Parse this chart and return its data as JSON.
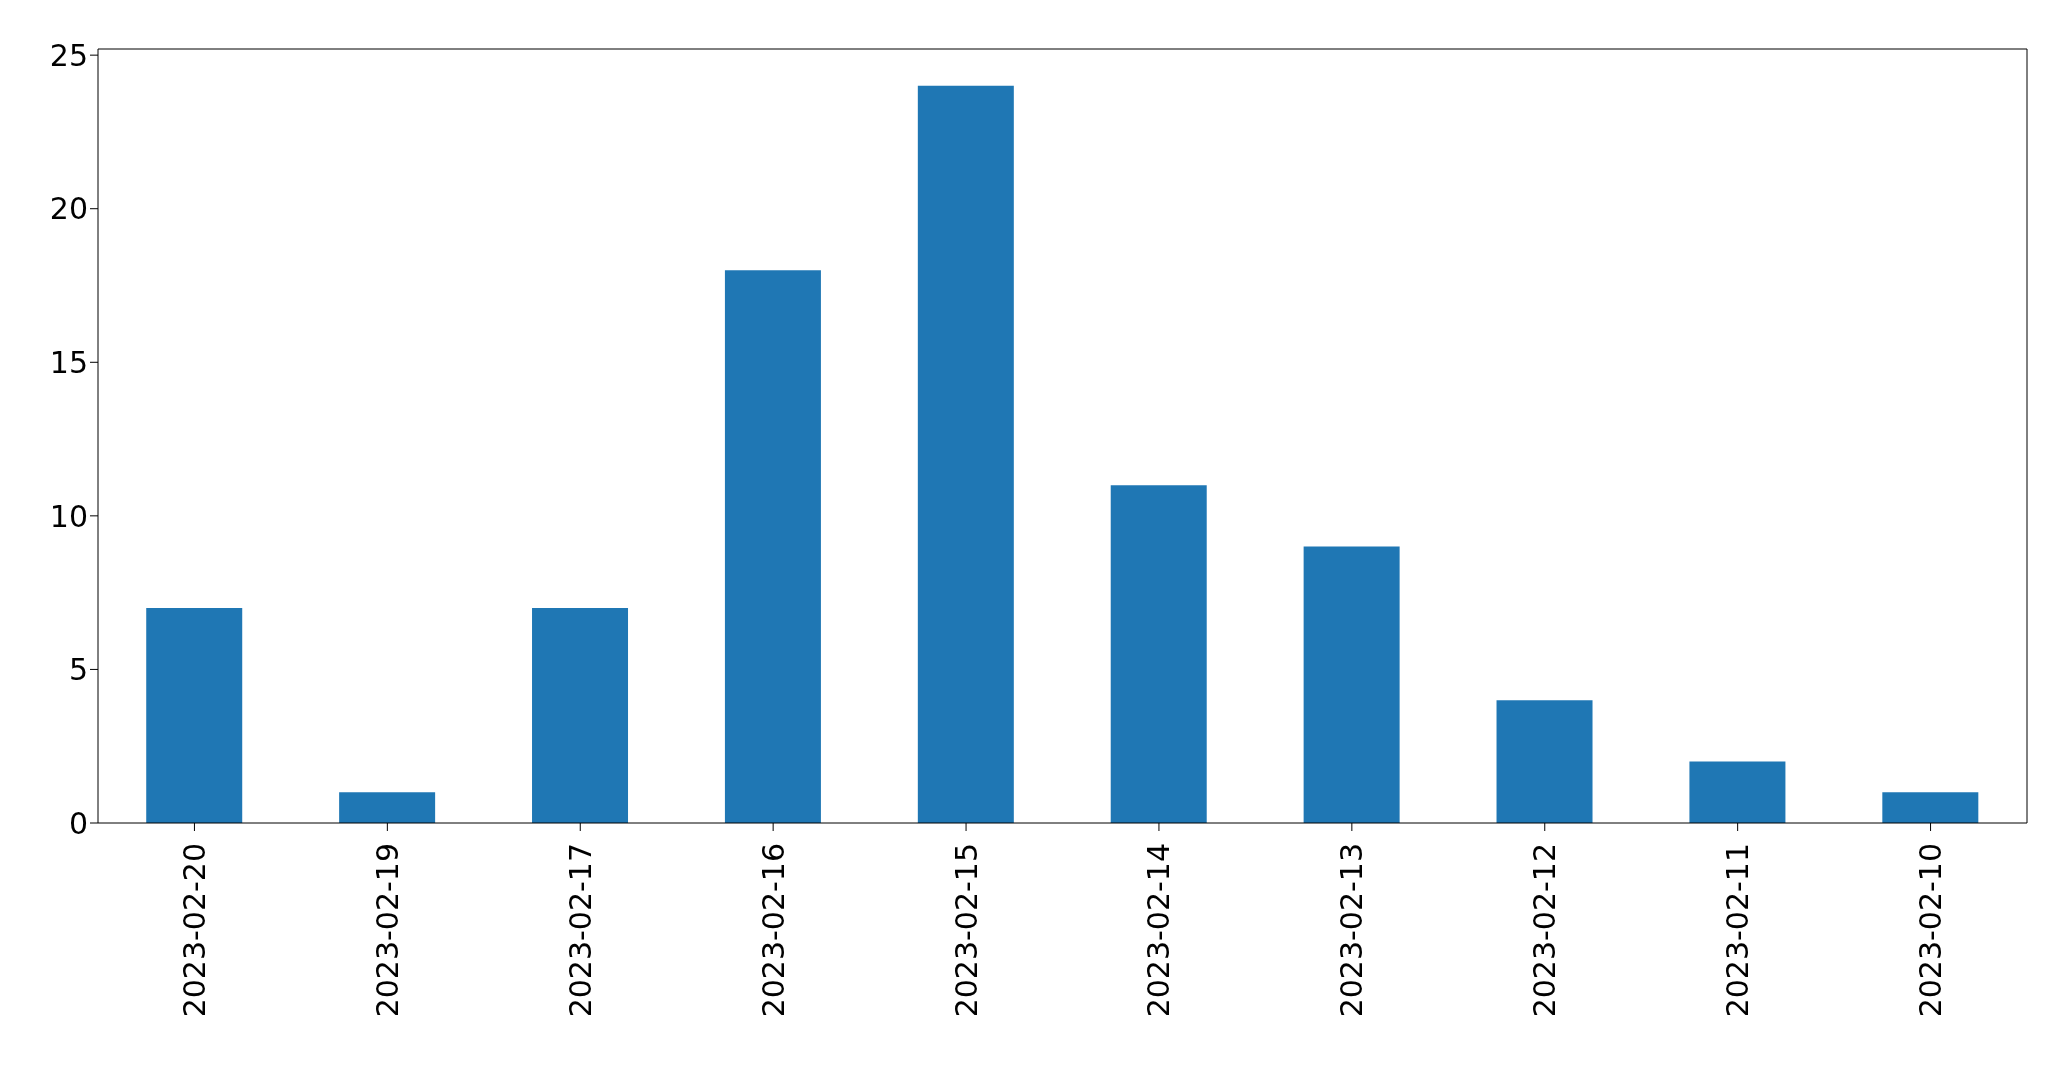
{
  "chart_data": {
    "type": "bar",
    "categories": [
      "2023-02-20",
      "2023-02-19",
      "2023-02-17",
      "2023-02-16",
      "2023-02-15",
      "2023-02-14",
      "2023-02-13",
      "2023-02-12",
      "2023-02-11",
      "2023-02-10"
    ],
    "values": [
      7,
      1,
      7,
      18,
      24,
      11,
      9,
      4,
      2,
      1
    ],
    "color": "#1f77b4",
    "ylim": [
      0,
      25.2
    ],
    "yticks": [
      0,
      5,
      10,
      15,
      20,
      25
    ],
    "grid": false
  }
}
